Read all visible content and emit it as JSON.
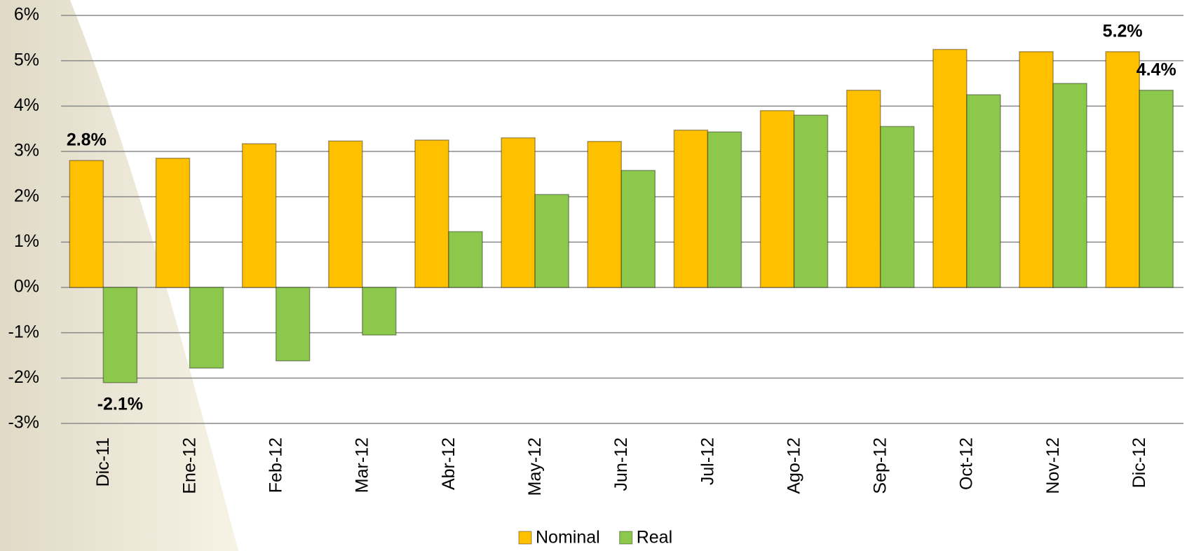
{
  "chart_data": {
    "type": "bar",
    "categories": [
      "Dic-11",
      "Ene-12",
      "Feb-12",
      "Mar-12",
      "Abr-12",
      "May-12",
      "Jun-12",
      "Jul-12",
      "Ago-12",
      "Sep-12",
      "Oct-12",
      "Nov-12",
      "Dic-12"
    ],
    "series": [
      {
        "name": "Nominal",
        "color": "#ffc000",
        "values": [
          2.8,
          2.85,
          3.17,
          3.23,
          3.25,
          3.3,
          3.22,
          3.47,
          3.9,
          4.35,
          5.25,
          5.2,
          5.2
        ],
        "value_labels": [
          "2.8%",
          null,
          null,
          null,
          null,
          null,
          null,
          null,
          null,
          null,
          null,
          null,
          "5.2%"
        ]
      },
      {
        "name": "Real",
        "color": "#8cc84b",
        "values": [
          -2.1,
          -1.78,
          -1.62,
          -1.05,
          1.23,
          2.05,
          2.58,
          3.43,
          3.8,
          3.55,
          4.25,
          4.5,
          4.35
        ],
        "value_labels": [
          "-2.1%",
          null,
          null,
          null,
          null,
          null,
          null,
          null,
          null,
          null,
          null,
          null,
          "4.4%"
        ]
      }
    ],
    "ylim": [
      -3,
      6
    ],
    "yticks": [
      {
        "value": -3,
        "label": "-3%"
      },
      {
        "value": -2,
        "label": "-2%"
      },
      {
        "value": -1,
        "label": "-1%"
      },
      {
        "value": 0,
        "label": "0%"
      },
      {
        "value": 1,
        "label": "1%"
      },
      {
        "value": 2,
        "label": "2%"
      },
      {
        "value": 3,
        "label": "3%"
      },
      {
        "value": 4,
        "label": "4%"
      },
      {
        "value": 5,
        "label": "5%"
      },
      {
        "value": 6,
        "label": "6%"
      }
    ],
    "grid": true,
    "legend": "bottom"
  }
}
